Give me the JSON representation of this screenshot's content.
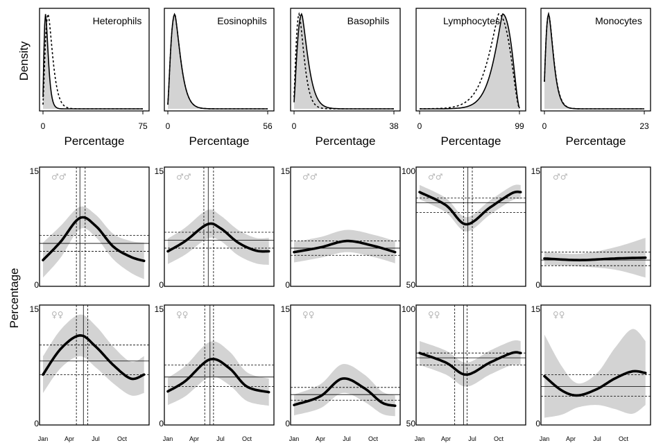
{
  "labels": {
    "density_ylabel": "Density",
    "percentage_xlabel": "Percentage",
    "percentage_ylabel": "Percentage",
    "male_symbol": "♂♂",
    "female_symbol": "♀♀"
  },
  "months": [
    "Jan",
    "Apr",
    "Jul",
    "Oct"
  ],
  "colors": {
    "band": "#d3d3d3",
    "line": "#000000"
  },
  "chart_data": [
    {
      "type": "density",
      "panels": [
        {
          "name": "Heterophils",
          "xlim": [
            0,
            75
          ],
          "xticks": [
            "0",
            "75"
          ],
          "peak_x": 2,
          "solid_spread": 10,
          "dashed_peak_x": 4,
          "dashed_spread": 12
        },
        {
          "name": "Eosinophils",
          "xlim": [
            0,
            56
          ],
          "xticks": [
            "0",
            "56"
          ],
          "peak_x": 4,
          "solid_spread": 9,
          "dashed_peak_x": 4,
          "dashed_spread": 9
        },
        {
          "name": "Basophils",
          "xlim": [
            0,
            38
          ],
          "xticks": [
            "0",
            "38"
          ],
          "peak_x": 3,
          "solid_spread": 6,
          "dashed_peak_x": 2,
          "dashed_spread": 7
        },
        {
          "name": "Lymphocytes",
          "xlim": [
            0,
            99
          ],
          "xticks": [
            "0",
            "99"
          ],
          "peak_x": 82,
          "solid_spread": 18,
          "dashed_peak_x": 78,
          "dashed_spread": 22
        },
        {
          "name": "Monocytes",
          "xlim": [
            0,
            23
          ],
          "xticks": [
            "0",
            "23"
          ],
          "peak_x": 1,
          "solid_spread": 5,
          "dashed_peak_x": 1,
          "dashed_spread": 6
        }
      ]
    },
    {
      "type": "line",
      "sex": "male",
      "x_domain": [
        0,
        12
      ],
      "panels": [
        {
          "ylim": [
            0,
            15
          ],
          "yticks": [
            "0",
            "15"
          ],
          "points": [
            [
              0,
              3.3
            ],
            [
              2,
              5.6
            ],
            [
              4.2,
              8.6
            ],
            [
              6,
              7.6
            ],
            [
              8,
              5.0
            ],
            [
              10,
              3.7
            ],
            [
              11.5,
              3.2
            ]
          ],
          "band": [
            2.2,
            2.0,
            1.4,
            1.4,
            1.6,
            2.0,
            2.3
          ],
          "hlines": [
            5.4,
            6.4,
            4.4
          ],
          "vlines": [
            3.8,
            4.2,
            4.8
          ]
        },
        {
          "ylim": [
            0,
            15
          ],
          "yticks": [
            "0",
            "15"
          ],
          "points": [
            [
              0,
              4.4
            ],
            [
              2,
              5.7
            ],
            [
              4.5,
              7.8
            ],
            [
              6,
              7.3
            ],
            [
              8,
              5.5
            ],
            [
              10,
              4.5
            ],
            [
              11.5,
              4.4
            ]
          ],
          "band": [
            1.6,
            1.7,
            1.8,
            1.6,
            1.6,
            1.6,
            1.7
          ],
          "hlines": [
            5.8,
            6.8,
            4.8
          ],
          "vlines": [
            4.1,
            4.6,
            5.2
          ]
        },
        {
          "ylim": [
            0,
            15
          ],
          "yticks": [
            "0",
            "15"
          ],
          "points": [
            [
              0,
              4.3
            ],
            [
              3,
              4.9
            ],
            [
              6,
              5.7
            ],
            [
              9,
              5.1
            ],
            [
              11.5,
              4.3
            ]
          ],
          "band": [
            1.3,
            1.3,
            1.4,
            1.4,
            1.4
          ],
          "hlines": [
            4.8,
            5.7,
            3.9
          ],
          "vlines": []
        },
        {
          "ylim": [
            50,
            100
          ],
          "yticks": [
            "50",
            "100"
          ],
          "points": [
            [
              0,
              89.5
            ],
            [
              3,
              84
            ],
            [
              5.3,
              76
            ],
            [
              8,
              83
            ],
            [
              10.5,
              89
            ],
            [
              11.5,
              89.5
            ]
          ],
          "band": [
            3,
            3,
            3,
            3,
            3,
            3
          ],
          "hlines": [
            85,
            87,
            81
          ],
          "vlines": [
            5.0,
            5.5,
            6.0
          ]
        },
        {
          "ylim": [
            0,
            15
          ],
          "yticks": [
            "0",
            "15"
          ],
          "points": [
            [
              0,
              3.5
            ],
            [
              4,
              3.3
            ],
            [
              8,
              3.5
            ],
            [
              11.5,
              3.6
            ]
          ],
          "band": [
            0.8,
            0.8,
            1.4,
            2.5
          ],
          "hlines": [
            3.3,
            4.3,
            2.6
          ],
          "vlines": []
        }
      ]
    },
    {
      "type": "line",
      "sex": "female",
      "x_domain": [
        0,
        12
      ],
      "panels": [
        {
          "ylim": [
            0,
            15
          ],
          "yticks": [
            "0",
            "15"
          ],
          "points": [
            [
              0,
              6.3
            ],
            [
              2,
              9.5
            ],
            [
              4.2,
              11.2
            ],
            [
              6,
              9.8
            ],
            [
              8,
              7.5
            ],
            [
              10,
              5.8
            ],
            [
              11.5,
              6.3
            ]
          ],
          "band": [
            2.3,
            2.4,
            2.6,
            2.6,
            2.3,
            2.1,
            2.3
          ],
          "hlines": [
            8.0,
            10.0,
            6.3
          ],
          "vlines": [
            3.8,
            4.6,
            5.1
          ]
        },
        {
          "ylim": [
            0,
            15
          ],
          "yticks": [
            "0",
            "15"
          ],
          "points": [
            [
              0,
              4.2
            ],
            [
              2,
              5.5
            ],
            [
              4.8,
              8.2
            ],
            [
              7,
              7.1
            ],
            [
              9,
              4.8
            ],
            [
              11.5,
              4.1
            ]
          ],
          "band": [
            1.7,
            1.9,
            2.2,
            2.1,
            1.8,
            1.7
          ],
          "hlines": [
            6.0,
            7.5,
            4.8
          ],
          "vlines": [
            4.2,
            4.8,
            5.2
          ]
        },
        {
          "ylim": [
            0,
            15
          ],
          "yticks": [
            "0",
            "15"
          ],
          "points": [
            [
              0,
              2.5
            ],
            [
              3,
              3.6
            ],
            [
              5.5,
              5.8
            ],
            [
              8,
              4.6
            ],
            [
              10,
              2.8
            ],
            [
              11.5,
              2.4
            ]
          ],
          "band": [
            1.3,
            1.5,
            1.8,
            1.7,
            1.4,
            1.3
          ],
          "hlines": [
            3.8,
            4.7,
            3.1
          ],
          "vlines": []
        },
        {
          "ylim": [
            50,
            100
          ],
          "yticks": [
            "50",
            "100"
          ],
          "points": [
            [
              0,
              80
            ],
            [
              3,
              76
            ],
            [
              5.3,
              71
            ],
            [
              8,
              76
            ],
            [
              10.5,
              80
            ],
            [
              11.5,
              80
            ]
          ],
          "band": [
            5,
            5,
            5,
            5,
            5,
            5
          ],
          "hlines": [
            78,
            80,
            75
          ],
          "vlines": [
            4.0,
            5.0,
            5.4
          ]
        },
        {
          "ylim": [
            0,
            15
          ],
          "yticks": [
            "0",
            "15"
          ],
          "points": [
            [
              0,
              6.1
            ],
            [
              2,
              4.3
            ],
            [
              3.8,
              3.7
            ],
            [
              6,
              4.5
            ],
            [
              8,
              5.8
            ],
            [
              10,
              6.7
            ],
            [
              11.5,
              6.5
            ]
          ],
          "band": [
            5.2,
            3.0,
            1.5,
            2.0,
            3.8,
            5.3,
            4.0
          ],
          "hlines": [
            4.8,
            6.3,
            3.6
          ],
          "vlines": []
        }
      ]
    }
  ]
}
